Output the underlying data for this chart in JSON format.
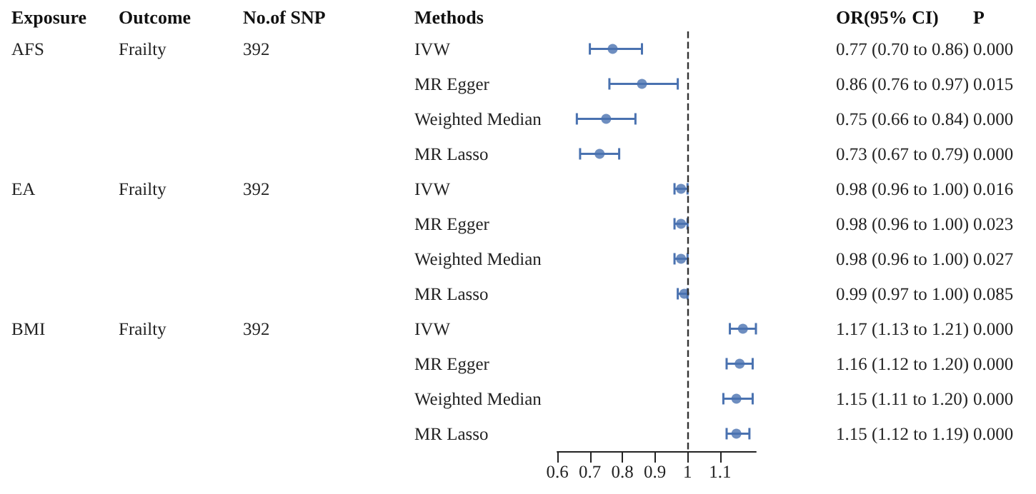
{
  "chart_data": {
    "type": "scatter",
    "orientation": "horizontal",
    "marker": "circle",
    "grid": false,
    "categories": [
      "IVW",
      "MR Egger",
      "Weighted Median",
      "MR Lasso",
      "IVW",
      "MR Egger",
      "Weighted Median",
      "MR Lasso",
      "IVW",
      "MR Egger",
      "Weighted Median",
      "MR Lasso"
    ],
    "color": "#4a72b0",
    "values": [
      0.77,
      0.86,
      0.75,
      0.73,
      0.98,
      0.98,
      0.98,
      0.99,
      1.17,
      1.16,
      1.15,
      1.15
    ],
    "errors": [
      [
        0.7,
        0.86
      ],
      [
        0.76,
        0.97
      ],
      [
        0.66,
        0.84
      ],
      [
        0.67,
        0.79
      ],
      [
        0.96,
        1.0
      ],
      [
        0.96,
        1.0
      ],
      [
        0.96,
        1.0
      ],
      [
        0.97,
        1.0
      ],
      [
        1.13,
        1.21
      ],
      [
        1.12,
        1.2
      ],
      [
        1.11,
        1.2
      ],
      [
        1.12,
        1.19
      ]
    ],
    "value_labels": [
      "0.77 (0.70 to 0.86)",
      "0.86 (0.76 to 0.97)",
      "0.75 (0.66 to 0.84)",
      "0.73 (0.67 to 0.79)",
      "0.98 (0.96 to 1.00)",
      "0.98 (0.96 to 1.00)",
      "0.98 (0.96 to 1.00)",
      "0.99 (0.97 to 1.00)",
      "1.17 (1.13 to 1.21)",
      "1.16 (1.12 to 1.20)",
      "1.15 (1.11 to 1.20)",
      "1.15 (1.12 to 1.19)"
    ],
    "xlim": [
      0.6,
      1.21
    ],
    "xticks": [
      0.6,
      0.7,
      0.8,
      0.9,
      1,
      1.1
    ],
    "ref_lines": [
      {
        "axis": "x",
        "value": 1,
        "line_style": "dashed",
        "color": "#333333"
      }
    ],
    "annotations": [
      "Exposure",
      "Outcome",
      "No.of SNP",
      "Methods",
      "OR(95% CI)",
      "P",
      "AFS",
      "Frailty",
      "392",
      "EA",
      "Frailty",
      "392",
      "BMI",
      "Frailty",
      "392",
      "0.000",
      "0.015",
      "0.000",
      "0.000",
      "0.016",
      "0.023",
      "0.027",
      "0.085",
      "0.000",
      "0.000",
      "0.000",
      "0.000"
    ]
  }
}
